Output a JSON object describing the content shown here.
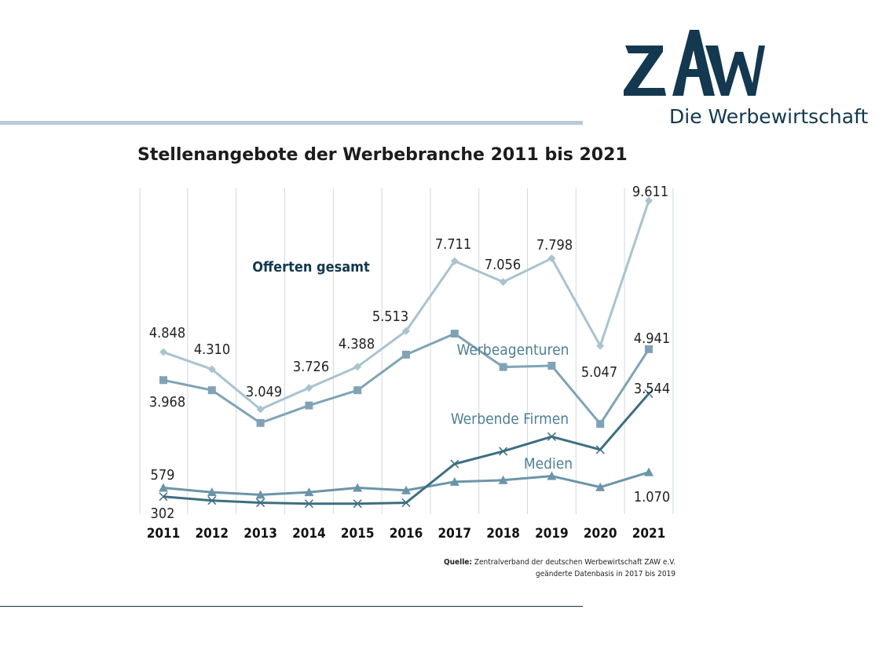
{
  "logo": {
    "letters": "ZAW",
    "subtitle": "Die Werbewirtschaft"
  },
  "source": {
    "label": "Quelle:",
    "text": "Zentralverband der deutschen Werbewirtschaft ZAW e.V.",
    "note": "geänderte Datenbasis in 2017 bis 2019"
  },
  "chart_data": {
    "type": "line",
    "title": "Stellenangebote der Werbebranche 2011 bis 2021",
    "xlabel": "",
    "ylabel": "",
    "categories": [
      "2011",
      "2012",
      "2013",
      "2014",
      "2015",
      "2016",
      "2017",
      "2018",
      "2019",
      "2020",
      "2021"
    ],
    "ylim": [
      0,
      10000
    ],
    "grid": "vertical",
    "colors": {
      "gesamt": "#a9c3d0",
      "agenturen": "#7fa3b5",
      "firmen": "#3e6e82",
      "medien": "#6b95a8"
    },
    "series": [
      {
        "key": "gesamt",
        "name": "Offerten gesamt",
        "marker": "diamond",
        "values": [
          4848,
          4310,
          3049,
          3726,
          4388,
          5513,
          7711,
          7056,
          7798,
          5047,
          9611
        ]
      },
      {
        "key": "agenturen",
        "name": "Werbeagenturen",
        "marker": "square",
        "values": [
          3968,
          3650,
          2620,
          3170,
          3650,
          4770,
          5430,
          4380,
          4420,
          2590,
          4941
        ]
      },
      {
        "key": "firmen",
        "name": "Werbende Firmen",
        "marker": "x",
        "values": [
          302,
          180,
          110,
          80,
          80,
          110,
          1330,
          1730,
          2190,
          1780,
          3544
        ]
      },
      {
        "key": "medien",
        "name": "Medien",
        "marker": "triangle",
        "values": [
          579,
          440,
          360,
          440,
          580,
          500,
          770,
          820,
          950,
          600,
          1070
        ]
      }
    ],
    "data_labels": [
      {
        "text": "4.848"
      },
      {
        "text": "4.310"
      },
      {
        "text": "3.049"
      },
      {
        "text": "3.726"
      },
      {
        "text": "4.388"
      },
      {
        "text": "5.513"
      },
      {
        "text": "7.711"
      },
      {
        "text": "7.056"
      },
      {
        "text": "7.798"
      },
      {
        "text": "5.047"
      },
      {
        "text": "9.611"
      },
      {
        "text": "3.968"
      },
      {
        "text": "4.941"
      },
      {
        "text": "3.544"
      },
      {
        "text": "579"
      },
      {
        "text": "302"
      },
      {
        "text": "1.070"
      }
    ]
  }
}
